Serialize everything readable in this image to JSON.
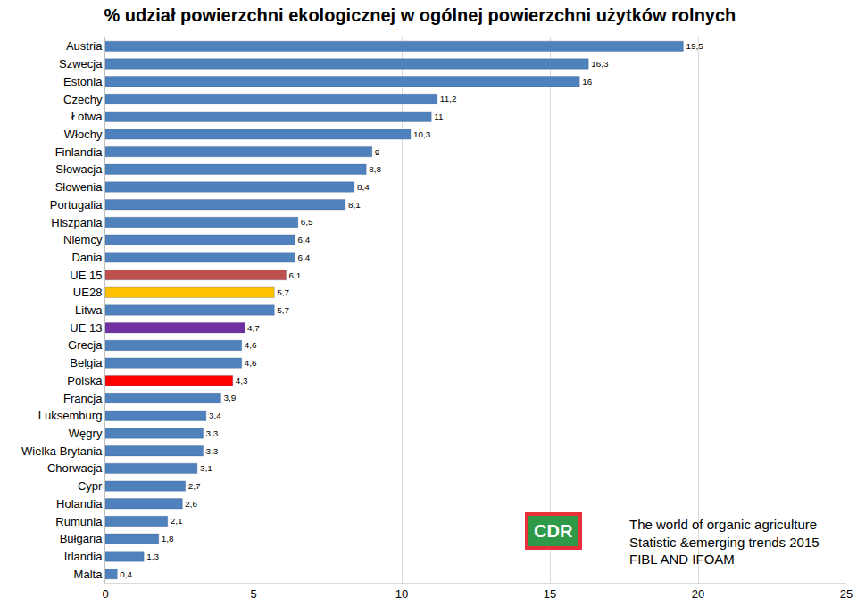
{
  "chart_data": {
    "type": "bar",
    "title": "% udział powierzchni ekologicznej w ogólnej powierzchni użytków rolnych",
    "orientation": "horizontal",
    "categories": [
      "Austria",
      "Szwecja",
      "Estonia",
      "Czechy",
      "Łotwa",
      "Włochy",
      "Finlandia",
      "Słowacja",
      "Słowenia",
      "Portugalia",
      "Hiszpania",
      "Niemcy",
      "Dania",
      "UE 15",
      "UE28",
      "Litwa",
      "UE 13",
      "Grecja",
      "Belgia",
      "Polska",
      "Francja",
      "Luksemburg",
      "Węgry",
      "Wielka Brytania",
      "Chorwacja",
      "Cypr",
      "Holandia",
      "Rumunia",
      "Bułgaria",
      "Irlandia",
      "Malta"
    ],
    "values": [
      19.5,
      16.3,
      16,
      11.2,
      11,
      10.3,
      9,
      8.8,
      8.4,
      8.1,
      6.5,
      6.4,
      6.4,
      6.1,
      5.7,
      5.7,
      4.7,
      4.6,
      4.6,
      4.3,
      3.9,
      3.4,
      3.3,
      3.3,
      3.1,
      2.7,
      2.6,
      2.1,
      1.8,
      1.3,
      0.4
    ],
    "value_labels": [
      "19,5",
      "16,3",
      "16",
      "11,2",
      "11",
      "10,3",
      "9",
      "8,8",
      "8,4",
      "8,1",
      "6,5",
      "6,4",
      "6,4",
      "6,1",
      "5,7",
      "5,7",
      "4,7",
      "4,6",
      "4,6",
      "4,3",
      "3,9",
      "3,4",
      "3,3",
      "3,3",
      "3,1",
      "2,7",
      "2,6",
      "2,1",
      "1,8",
      "1,3",
      "0,4"
    ],
    "colors": [
      "#4f81bd",
      "#4f81bd",
      "#4f81bd",
      "#4f81bd",
      "#4f81bd",
      "#4f81bd",
      "#4f81bd",
      "#4f81bd",
      "#4f81bd",
      "#4f81bd",
      "#4f81bd",
      "#4f81bd",
      "#4f81bd",
      "#c0504d",
      "#ffc000",
      "#4f81bd",
      "#7030a0",
      "#4f81bd",
      "#4f81bd",
      "#ff0000",
      "#4f81bd",
      "#4f81bd",
      "#4f81bd",
      "#4f81bd",
      "#4f81bd",
      "#4f81bd",
      "#4f81bd",
      "#4f81bd",
      "#4f81bd",
      "#4f81bd",
      "#4f81bd"
    ],
    "xlim": [
      0,
      25
    ],
    "xticks": [
      0,
      5,
      10,
      15,
      20,
      25
    ],
    "grid": true,
    "data_labels": true,
    "source": [
      "The world of organic agriculture",
      "Statistic &emerging trends 2015",
      "FIBL AND IFOAM"
    ],
    "logo_text": "CDR"
  }
}
